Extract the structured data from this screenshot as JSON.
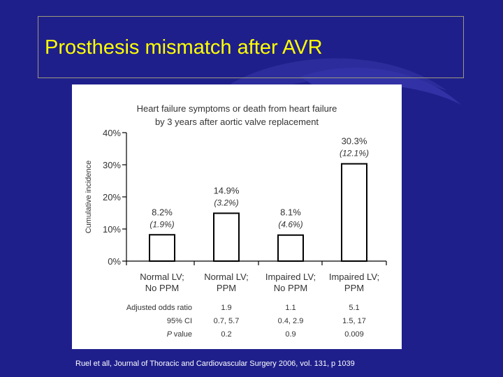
{
  "slide": {
    "title": "Prosthesis mismatch after AVR",
    "citation": "Ruel et all, Journal of Thoracic and Cardiovascular Surgery 2006, vol. 131, p 1039"
  },
  "colors": {
    "background": "#1f1f8c",
    "title": "#ffff00",
    "figure_background": "#ffffff",
    "bar_fill": "#ffffff",
    "bar_stroke": "#000000"
  },
  "chart_data": {
    "type": "bar",
    "title_lines": [
      "Heart failure symptoms or death from heart failure",
      "by 3 years after aortic valve replacement"
    ],
    "ylabel": "Cumulative incidence",
    "ylim": [
      0,
      40
    ],
    "yticks": [
      0,
      10,
      20,
      30,
      40
    ],
    "ytick_labels": [
      "0%",
      "10%",
      "20%",
      "30%",
      "40%"
    ],
    "categories": [
      {
        "line1": "Normal LV;",
        "line2": "No PPM"
      },
      {
        "line1": "Normal LV;",
        "line2": "PPM"
      },
      {
        "line1": "Impaired LV;",
        "line2": "No PPM"
      },
      {
        "line1": "Impaired LV;",
        "line2": "PPM"
      }
    ],
    "values": [
      8.2,
      14.9,
      8.1,
      30.3
    ],
    "value_labels": [
      "8.2%",
      "14.9%",
      "8.1%",
      "30.3%"
    ],
    "secondary_labels": [
      "(1.9%)",
      "(3.2%)",
      "(4.6%)",
      "(12.1%)"
    ],
    "grid": false,
    "stats_table": [
      {
        "label": "Adjusted odds ratio",
        "italic_prefix": "",
        "values": [
          "",
          "1.9",
          "1.1",
          "5.1"
        ]
      },
      {
        "label": "95% CI",
        "italic_prefix": "",
        "values": [
          "",
          "0.7, 5.7",
          "0.4, 2.9",
          "1.5, 17"
        ]
      },
      {
        "label": "value",
        "italic_prefix": "P",
        "values": [
          "",
          "0.2",
          "0.9",
          "0.009"
        ]
      }
    ]
  }
}
